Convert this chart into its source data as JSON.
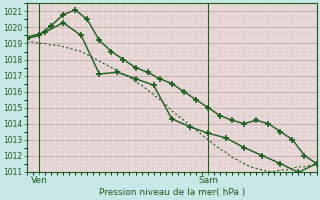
{
  "title": "Pression niveau de la mer( hPa )",
  "xlabel_ven": "Ven",
  "xlabel_sam": "Sam",
  "ylim": [
    1011,
    1021.5
  ],
  "yticks": [
    1011,
    1012,
    1013,
    1014,
    1015,
    1016,
    1017,
    1018,
    1019,
    1020,
    1021
  ],
  "xlim": [
    0,
    48
  ],
  "background_color": "#c8e8e8",
  "plot_bg_color": "#e8d8d8",
  "grid_color_major": "#c0a8a8",
  "grid_color_minor": "#d8c0c0",
  "line_color": "#1a5c1a",
  "ven_x": 2,
  "sam_x": 30,
  "series1_x": [
    0,
    1,
    2,
    3,
    4,
    5,
    6,
    7,
    8,
    9,
    10,
    11,
    12,
    13,
    14,
    15,
    16,
    17,
    18,
    19,
    20,
    21,
    22,
    23,
    24,
    25,
    26,
    27,
    28,
    29,
    30,
    31,
    32,
    33,
    34,
    35,
    36,
    37,
    38,
    39,
    40,
    41,
    42,
    43,
    44,
    45,
    46,
    47,
    48
  ],
  "series1_y": [
    1019.1,
    1019.1,
    1019.0,
    1019.0,
    1018.9,
    1018.9,
    1018.8,
    1018.7,
    1018.6,
    1018.5,
    1018.3,
    1018.1,
    1017.9,
    1017.7,
    1017.5,
    1017.3,
    1017.1,
    1016.9,
    1016.6,
    1016.4,
    1016.1,
    1015.8,
    1015.5,
    1015.2,
    1014.8,
    1014.5,
    1014.2,
    1013.9,
    1013.6,
    1013.3,
    1013.0,
    1012.7,
    1012.4,
    1012.2,
    1011.9,
    1011.7,
    1011.5,
    1011.3,
    1011.2,
    1011.1,
    1011.0,
    1011.0,
    1011.1,
    1011.1,
    1011.2,
    1011.3,
    1011.3,
    1011.4,
    1011.4
  ],
  "series2_x": [
    0,
    2,
    4,
    6,
    8,
    10,
    12,
    14,
    16,
    18,
    20,
    22,
    24,
    26,
    28,
    30,
    32,
    34,
    36,
    38,
    40,
    42,
    44,
    46,
    48
  ],
  "series2_y": [
    1019.3,
    1019.5,
    1020.1,
    1020.8,
    1021.1,
    1020.5,
    1019.2,
    1018.5,
    1018.0,
    1017.5,
    1017.2,
    1016.8,
    1016.5,
    1016.0,
    1015.5,
    1015.0,
    1014.5,
    1014.2,
    1014.0,
    1014.2,
    1014.0,
    1013.5,
    1013.0,
    1012.0,
    1011.5
  ],
  "series3_x": [
    0,
    3,
    6,
    9,
    12,
    15,
    18,
    21,
    24,
    27,
    30,
    33,
    36,
    39,
    42,
    45,
    48
  ],
  "series3_y": [
    1019.4,
    1019.7,
    1020.3,
    1019.5,
    1017.1,
    1017.2,
    1016.8,
    1016.4,
    1014.3,
    1013.8,
    1013.4,
    1013.1,
    1012.5,
    1012.0,
    1011.5,
    1010.95,
    1011.5
  ]
}
